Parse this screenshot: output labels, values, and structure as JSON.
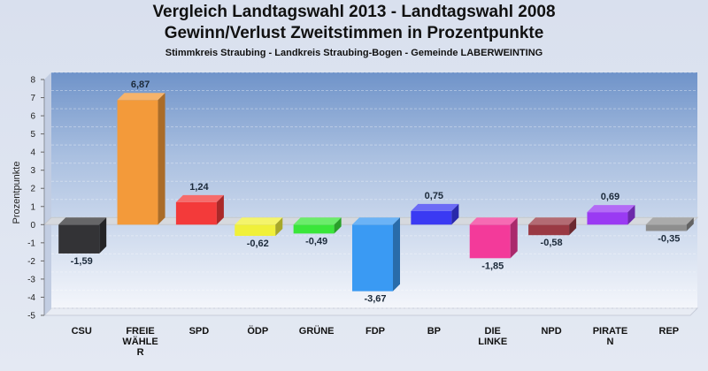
{
  "titles": {
    "line1": "Vergleich Landtagswahl 2013 - Landtagswahl 2008",
    "line2": "Gewinn/Verlust Zweitstimmen in Prozentpunkte",
    "line3": "Stimmkreis Straubing - Landkreis Straubing-Bogen - Gemeinde LABERWEINTING"
  },
  "chart_data": {
    "type": "bar",
    "title": "Vergleich Landtagswahl 2013 - Landtagswahl 2008",
    "subtitle": "Gewinn/Verlust Zweitstimmen in Prozentpunkte",
    "ylabel": "Prozentpunkte",
    "xlabel": "",
    "ylim": [
      -5,
      8
    ],
    "yticks": [
      "8",
      "7",
      "6",
      "5",
      "4",
      "3",
      "2",
      "1",
      "0",
      "-1",
      "-2",
      "-3",
      "-4",
      "-5"
    ],
    "grid": true,
    "categories": [
      {
        "label": "CSU",
        "lines": [
          "CSU"
        ],
        "value": -1.59,
        "value_label": "-1,59",
        "color": "#333336"
      },
      {
        "label": "FREIE WÄHLER",
        "lines": [
          "FREIE",
          "WÄHLE",
          "R"
        ],
        "value": 6.87,
        "value_label": "6,87",
        "color": "#f39a3a"
      },
      {
        "label": "SPD",
        "lines": [
          "SPD"
        ],
        "value": 1.24,
        "value_label": "1,24",
        "color": "#f33a3a"
      },
      {
        "label": "ÖDP",
        "lines": [
          "ÖDP"
        ],
        "value": -0.62,
        "value_label": "-0,62",
        "color": "#f0f03a"
      },
      {
        "label": "GRÜNE",
        "lines": [
          "GRÜNE"
        ],
        "value": -0.49,
        "value_label": "-0,49",
        "color": "#3ae63a"
      },
      {
        "label": "FDP",
        "lines": [
          "FDP"
        ],
        "value": -3.67,
        "value_label": "-3,67",
        "color": "#3a9af3"
      },
      {
        "label": "BP",
        "lines": [
          "BP"
        ],
        "value": 0.75,
        "value_label": "0,75",
        "color": "#3a3af3"
      },
      {
        "label": "DIE LINKE",
        "lines": [
          "DIE",
          "LINKE"
        ],
        "value": -1.85,
        "value_label": "-1,85",
        "color": "#f33a9a"
      },
      {
        "label": "NPD",
        "lines": [
          "NPD"
        ],
        "value": -0.58,
        "value_label": "-0,58",
        "color": "#9a3a44"
      },
      {
        "label": "PIRATEN",
        "lines": [
          "PIRATE",
          "N"
        ],
        "value": 0.69,
        "value_label": "0,69",
        "color": "#9a3af3"
      },
      {
        "label": "REP",
        "lines": [
          "REP"
        ],
        "value": -0.35,
        "value_label": "-0,35",
        "color": "#8e8e8e"
      }
    ]
  }
}
